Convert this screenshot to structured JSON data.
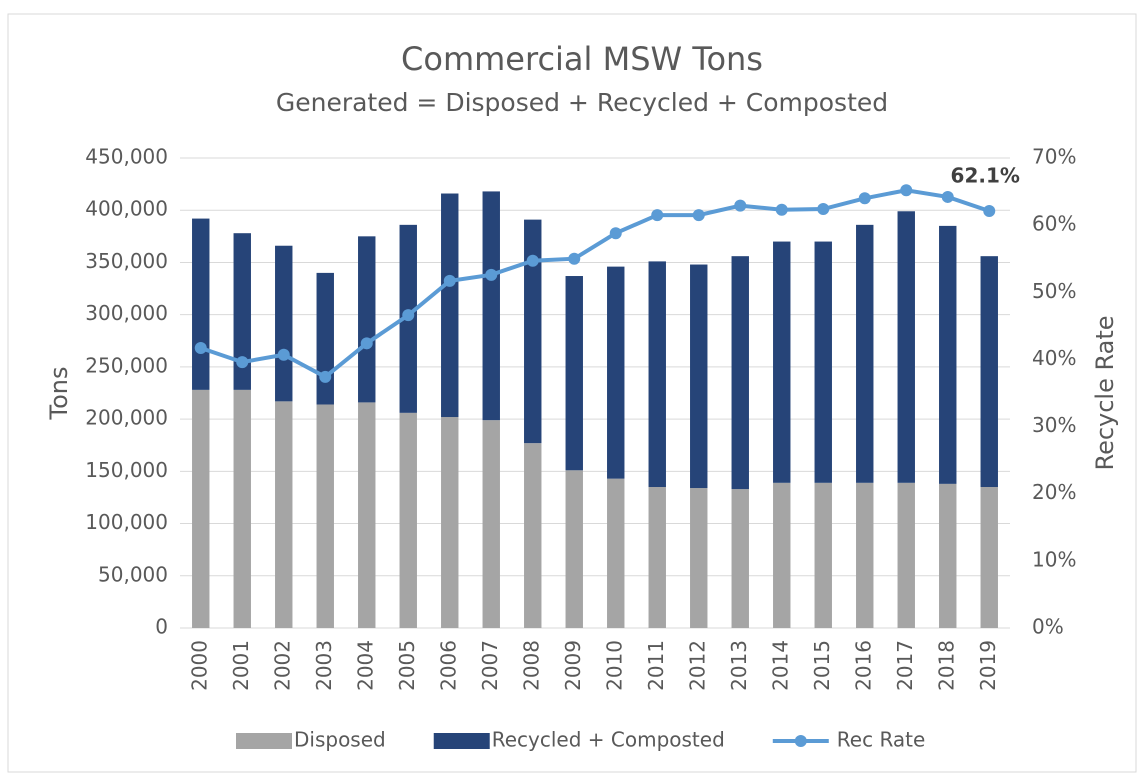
{
  "chart_data": {
    "type": "bar_line",
    "title": "Commercial MSW Tons",
    "subtitle": "Generated = Disposed + Recycled + Composted",
    "y_label": "Tons",
    "y2_label": "Recycle Rate",
    "categories": [
      "2000",
      "2001",
      "2002",
      "2003",
      "2004",
      "2005",
      "2006",
      "2007",
      "2008",
      "2009",
      "2010",
      "2011",
      "2012",
      "2013",
      "2014",
      "2015",
      "2016",
      "2017",
      "2018",
      "2019"
    ],
    "series": [
      {
        "name": "Disposed",
        "color": "#a5a5a5",
        "kind": "bar",
        "values": [
          228000,
          228000,
          217000,
          214000,
          216000,
          206000,
          202000,
          199000,
          177000,
          151000,
          143000,
          135000,
          134000,
          133000,
          139000,
          139000,
          139000,
          139000,
          138000,
          135000
        ]
      },
      {
        "name": "Recycled + Composted",
        "color": "#264478",
        "kind": "bar",
        "values": [
          164000,
          150000,
          149000,
          126000,
          159000,
          180000,
          214000,
          219000,
          214000,
          186000,
          203000,
          216000,
          214000,
          223000,
          231000,
          231000,
          247000,
          260000,
          247000,
          221000
        ]
      },
      {
        "name": "Rec Rate",
        "color": "#5b9bd5",
        "kind": "line",
        "axis": "y2",
        "values": [
          41.7,
          39.6,
          40.7,
          37.4,
          42.4,
          46.6,
          51.7,
          52.6,
          54.7,
          55.0,
          58.8,
          61.5,
          61.5,
          62.9,
          62.3,
          62.4,
          64.0,
          65.2,
          64.2,
          62.1
        ],
        "value_labels": [
          null,
          null,
          null,
          null,
          null,
          null,
          null,
          null,
          null,
          null,
          null,
          null,
          null,
          null,
          null,
          null,
          null,
          null,
          null,
          "62.1%"
        ]
      }
    ],
    "stacked": true,
    "ylim": [
      0,
      450000
    ],
    "yticks": [
      0,
      {
        "value": 50000,
        "label": "50,000"
      },
      {
        "value": 100000,
        "label": "100,000"
      },
      {
        "value": 150000,
        "label": "150,000"
      },
      {
        "value": 200000,
        "label": "200,000"
      },
      {
        "value": 250000,
        "label": "250,000"
      },
      {
        "value": 300000,
        "label": "300,000"
      },
      {
        "value": 350000,
        "label": "350,000"
      },
      {
        "value": 400000,
        "label": "400,000"
      },
      {
        "value": 450000,
        "label": "450,000"
      }
    ],
    "y2lim": [
      0,
      70
    ],
    "y2ticks": [
      {
        "value": 0,
        "label": "0%"
      },
      {
        "value": 10,
        "label": "10%"
      },
      {
        "value": 20,
        "label": "20%"
      },
      {
        "value": 30,
        "label": "30%"
      },
      {
        "value": 40,
        "label": "40%"
      },
      {
        "value": 50,
        "label": "50%"
      },
      {
        "value": 60,
        "label": "60%"
      },
      {
        "value": 70,
        "label": "70%"
      }
    ],
    "grid": true,
    "legend": "bottom"
  }
}
